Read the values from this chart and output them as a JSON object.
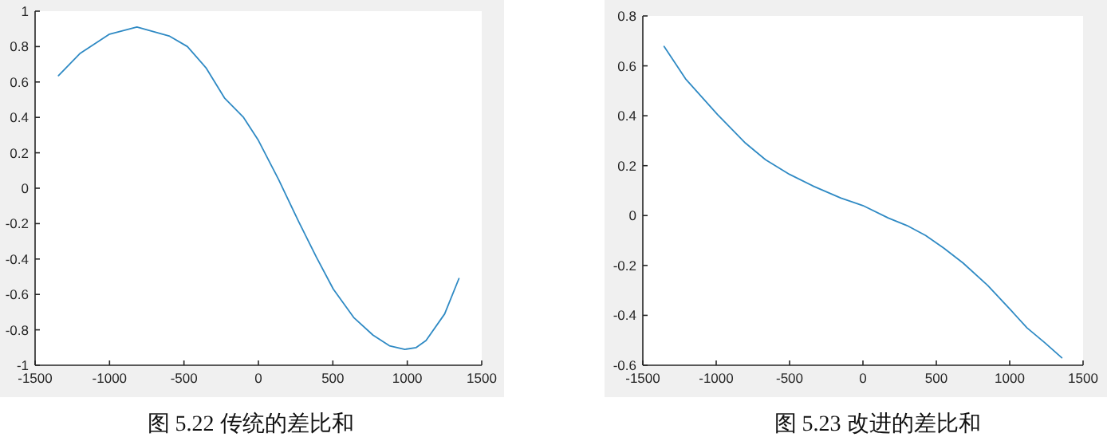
{
  "chart_data": [
    {
      "type": "line",
      "title": "图 5.22 传统的差比和",
      "series": [
        {
          "color": "#2f8ac4",
          "x": [
            -1343,
            -1200,
            -1000,
            -816,
            -600,
            -477,
            -352,
            -228,
            -100,
            0,
            135,
            271,
            390,
            503,
            640,
            770,
            880,
            984,
            1060,
            1126,
            1251,
            1347
          ],
          "values": [
            0.636,
            0.76,
            0.87,
            0.91,
            0.86,
            0.8,
            0.68,
            0.51,
            0.4,
            0.27,
            0.05,
            -0.19,
            -0.39,
            -0.57,
            -0.73,
            -0.83,
            -0.89,
            -0.91,
            -0.9,
            -0.86,
            -0.71,
            -0.51
          ]
        }
      ],
      "xlim": [
        -1500,
        1500
      ],
      "xticks": [
        -1500,
        -1000,
        -500,
        0,
        500,
        1000,
        1500
      ],
      "ylim": [
        -1,
        1
      ],
      "yticks": [
        -1,
        -0.8,
        -0.6,
        -0.4,
        -0.2,
        0,
        0.2,
        0.4,
        0.6,
        0.8,
        1
      ]
    },
    {
      "type": "line",
      "title": "图 5.23 改进的差比和",
      "series": [
        {
          "color": "#2f8ac4",
          "x": [
            -1355,
            -1209,
            -991,
            -800,
            -664,
            -500,
            -336,
            -150,
            0,
            173,
            300,
            427,
            550,
            682,
            850,
            1009,
            1118,
            1240,
            1355
          ],
          "values": [
            0.678,
            0.548,
            0.405,
            0.29,
            0.224,
            0.165,
            0.117,
            0.07,
            0.04,
            -0.01,
            -0.04,
            -0.08,
            -0.13,
            -0.19,
            -0.28,
            -0.38,
            -0.45,
            -0.51,
            -0.57
          ]
        }
      ],
      "xlim": [
        -1500,
        1500
      ],
      "xticks": [
        -1500,
        -1000,
        -500,
        0,
        500,
        1000,
        1500
      ],
      "ylim": [
        -0.6,
        0.8
      ],
      "yticks": [
        -0.6,
        -0.4,
        -0.2,
        0,
        0.2,
        0.4,
        0.6,
        0.8
      ]
    }
  ]
}
